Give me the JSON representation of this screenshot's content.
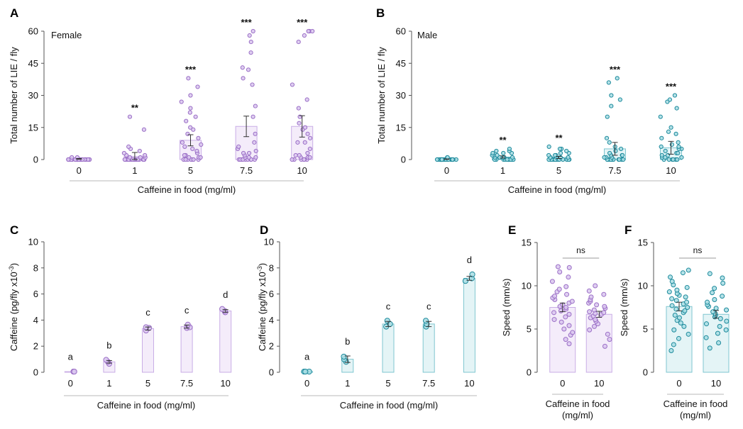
{
  "colors": {
    "female_point": "#9b6fc6",
    "female_point_fill": "#d9c7ee",
    "female_bar_fill": "#f4ecfa",
    "female_bar_stroke": "#c9aee6",
    "female_label": "#9a5cc9",
    "male_point": "#1e8a9c",
    "male_point_fill": "#a8dde4",
    "male_bar_fill": "#e4f4f6",
    "male_bar_stroke": "#7fc6d0",
    "male_label": "#1a7f93",
    "axis": "#555555",
    "guide": "#c8c8c8"
  },
  "chart_data": [
    {
      "panel": "A",
      "type": "bar",
      "label": "Female",
      "sex": "female",
      "categories": [
        "0",
        "1",
        "5",
        "7.5",
        "10"
      ],
      "values": [
        0.3,
        1.5,
        9.0,
        15.5,
        15.5
      ],
      "errors": [
        0.2,
        1.8,
        2.6,
        4.8,
        5.0
      ],
      "significance": [
        "",
        "**",
        "***",
        "***",
        "***"
      ],
      "points": [
        [
          0,
          0,
          0,
          0,
          0,
          0,
          0,
          0,
          0,
          0,
          0,
          0,
          0,
          0,
          0,
          0,
          0,
          0,
          0,
          0,
          0,
          0,
          0,
          0,
          0,
          0,
          0,
          0,
          1,
          1
        ],
        [
          0,
          0,
          0,
          0,
          0,
          0,
          0,
          0,
          0,
          0,
          0,
          0,
          0,
          0,
          0,
          0,
          0,
          0,
          0,
          1,
          1,
          1,
          2,
          2,
          3,
          4,
          5,
          6,
          14,
          20
        ],
        [
          0,
          0,
          0,
          0,
          0,
          0,
          0,
          1,
          1,
          1,
          2,
          2,
          3,
          4,
          5,
          6,
          7,
          8,
          10,
          12,
          14,
          15,
          18,
          20,
          22,
          24,
          27,
          30,
          34,
          38
        ],
        [
          0,
          0,
          0,
          0,
          0,
          0,
          0,
          0,
          0,
          1,
          1,
          1,
          2,
          3,
          3,
          4,
          5,
          6,
          8,
          12,
          20,
          25,
          35,
          38,
          42,
          43,
          50,
          55,
          58,
          60
        ],
        [
          0,
          0,
          0,
          0,
          0,
          0,
          0,
          1,
          1,
          1,
          2,
          2,
          3,
          5,
          8,
          8,
          10,
          12,
          14,
          15,
          17,
          20,
          24,
          28,
          35,
          55,
          58,
          60,
          60,
          60
        ]
      ],
      "ylim": [
        0,
        60
      ],
      "yticks": [
        0,
        15,
        30,
        45,
        60
      ],
      "ylabel": "Total number of LIE / fly",
      "xlabel": "Caffeine in food (mg/ml)"
    },
    {
      "panel": "B",
      "type": "bar",
      "label": "Male",
      "sex": "male",
      "categories": [
        "0",
        "1",
        "5",
        "7.5",
        "10"
      ],
      "values": [
        0.2,
        1.2,
        1.0,
        5.0,
        5.5
      ],
      "errors": [
        0.1,
        0.5,
        0.5,
        3.0,
        3.0
      ],
      "significance": [
        "",
        "**",
        "**",
        "***",
        "***"
      ],
      "points": [
        [
          0,
          0,
          0,
          0,
          0,
          0,
          0,
          0,
          0,
          0,
          0,
          0,
          0,
          0,
          0,
          0,
          0,
          0,
          0,
          0,
          0,
          0,
          0,
          0,
          0,
          0,
          0,
          0,
          1,
          1
        ],
        [
          0,
          0,
          0,
          0,
          0,
          0,
          0,
          0,
          0,
          0,
          0,
          0,
          0,
          0,
          0,
          0,
          1,
          1,
          1,
          1,
          1,
          2,
          2,
          2,
          3,
          3,
          3,
          4,
          4,
          5
        ],
        [
          0,
          0,
          0,
          0,
          0,
          0,
          0,
          0,
          0,
          0,
          0,
          0,
          0,
          0,
          0,
          0,
          1,
          1,
          1,
          1,
          1,
          2,
          2,
          2,
          3,
          3,
          4,
          5,
          5,
          6
        ],
        [
          0,
          0,
          0,
          0,
          0,
          0,
          0,
          0,
          0,
          0,
          0,
          0,
          1,
          1,
          1,
          2,
          2,
          2,
          3,
          4,
          5,
          6,
          8,
          10,
          20,
          25,
          28,
          30,
          36,
          38
        ],
        [
          0,
          0,
          0,
          0,
          0,
          0,
          0,
          1,
          1,
          1,
          2,
          2,
          3,
          3,
          4,
          5,
          5,
          6,
          6,
          7,
          8,
          10,
          12,
          13,
          15,
          20,
          24,
          27,
          28,
          30
        ]
      ],
      "ylim": [
        0,
        60
      ],
      "yticks": [
        0,
        15,
        30,
        45,
        60
      ],
      "ylabel": "Total number of LIE / fly",
      "xlabel": "Caffeine in food (mg/ml)"
    },
    {
      "panel": "C",
      "type": "bar",
      "sex": "female",
      "categories": [
        "0",
        "1",
        "5",
        "7.5",
        "10"
      ],
      "values": [
        0.05,
        0.8,
        3.35,
        3.5,
        4.7
      ],
      "errors": [
        0.02,
        0.1,
        0.12,
        0.12,
        0.1
      ],
      "letters": [
        "a",
        "b",
        "c",
        "c",
        "d"
      ],
      "points": [
        [
          0.05,
          0.05,
          0.05
        ],
        [
          0.65,
          0.8,
          0.95
        ],
        [
          3.2,
          3.4,
          3.45
        ],
        [
          3.4,
          3.45,
          3.65
        ],
        [
          4.6,
          4.7,
          4.85
        ]
      ],
      "ylim": [
        0,
        10
      ],
      "yticks": [
        0,
        2,
        4,
        6,
        8,
        10
      ],
      "ylabel": "Caffeine (pg/fly x10",
      "ylabel_sup": "-3",
      "ylabel_end": ")",
      "xlabel": "Caffeine in food (mg/ml)"
    },
    {
      "panel": "D",
      "type": "bar",
      "sex": "male",
      "categories": [
        "0",
        "1",
        "5",
        "7.5",
        "10"
      ],
      "values": [
        0.05,
        1.0,
        3.7,
        3.7,
        7.2
      ],
      "errors": [
        0.02,
        0.25,
        0.2,
        0.2,
        0.15
      ],
      "letters": [
        "a",
        "b",
        "c",
        "c",
        "d"
      ],
      "points": [
        [
          0.05,
          0.05,
          0.05
        ],
        [
          0.8,
          1.0,
          1.2
        ],
        [
          3.5,
          3.7,
          3.95
        ],
        [
          3.5,
          3.7,
          3.95
        ],
        [
          7.0,
          7.2,
          7.5
        ]
      ],
      "ylim": [
        0,
        10
      ],
      "yticks": [
        0,
        2,
        4,
        6,
        8,
        10
      ],
      "ylabel": "Caffeine (pg/fly x10",
      "ylabel_sup": "-3",
      "ylabel_end": ")",
      "xlabel": "Caffeine in food (mg/ml)"
    },
    {
      "panel": "E",
      "type": "bar",
      "sex": "female",
      "categories": [
        "0",
        "10"
      ],
      "values": [
        7.5,
        6.7
      ],
      "errors": [
        0.5,
        0.35
      ],
      "significance_label": "ns",
      "points": [
        [
          3.3,
          3.8,
          4.3,
          4.6,
          5.0,
          5.4,
          5.8,
          6.1,
          6.4,
          6.7,
          6.9,
          7.1,
          7.3,
          7.5,
          7.6,
          7.8,
          8.0,
          8.2,
          8.4,
          8.6,
          8.8,
          9.0,
          9.3,
          9.6,
          9.9,
          10.5,
          11.0,
          11.6,
          12.1,
          12.2
        ],
        [
          3.0,
          3.8,
          4.4,
          4.9,
          5.3,
          5.6,
          5.9,
          6.1,
          6.3,
          6.5,
          6.7,
          6.8,
          6.9,
          7.0,
          7.2,
          7.4,
          7.6,
          7.8,
          8.0,
          8.2,
          8.4,
          8.7,
          9.0,
          9.4,
          10.0
        ]
      ],
      "ylim": [
        0,
        15
      ],
      "yticks": [
        0,
        5,
        10,
        15
      ],
      "ylabel": "Speed (mm/s)",
      "xlabel_lines": [
        "Caffeine in food",
        "(mg/ml)"
      ]
    },
    {
      "panel": "F",
      "type": "bar",
      "sex": "male",
      "categories": [
        "0",
        "10"
      ],
      "values": [
        7.6,
        6.7
      ],
      "errors": [
        0.5,
        0.45
      ],
      "significance_label": "ns",
      "points": [
        [
          2.5,
          3.2,
          3.9,
          4.4,
          4.9,
          5.3,
          5.7,
          6.0,
          6.3,
          6.6,
          6.9,
          7.1,
          7.3,
          7.5,
          7.7,
          7.9,
          8.1,
          8.3,
          8.5,
          8.7,
          8.9,
          9.1,
          9.3,
          9.5,
          9.8,
          10.1,
          10.5,
          11.0,
          11.5,
          11.8
        ],
        [
          2.8,
          3.4,
          4.0,
          4.5,
          4.9,
          5.3,
          5.6,
          5.9,
          6.2,
          6.4,
          6.6,
          6.8,
          7.0,
          7.2,
          7.4,
          7.6,
          7.8,
          8.1,
          8.4,
          8.8,
          9.2,
          9.7,
          10.3,
          10.9,
          11.4
        ]
      ],
      "ylim": [
        0,
        15
      ],
      "yticks": [
        0,
        5,
        10,
        15
      ],
      "ylabel": "Speed (mm/s)",
      "xlabel_lines": [
        "Caffeine in food",
        "(mg/ml)"
      ]
    }
  ]
}
